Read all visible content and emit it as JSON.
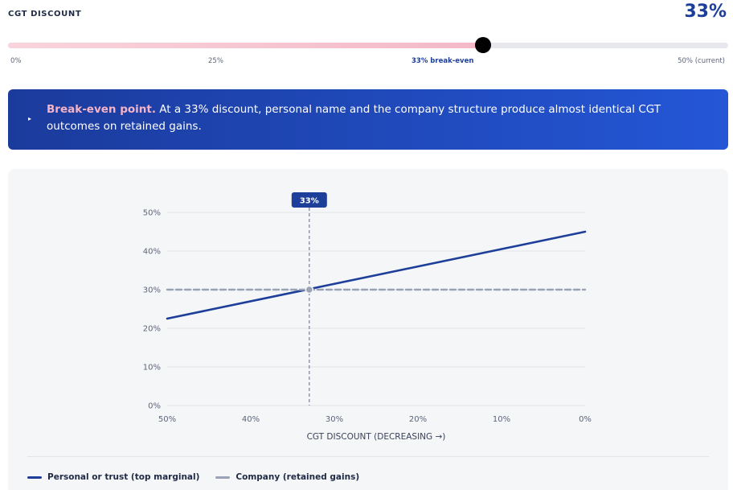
{
  "header": {
    "label": "CGT DISCOUNT",
    "value": "33%"
  },
  "slider": {
    "value_percent": 33,
    "min_percent": 0,
    "max_percent": 50,
    "ticks": {
      "t0": "0%",
      "t25": "25%",
      "t33": "33% break-even",
      "t50": "50% (current)"
    }
  },
  "banner": {
    "arrow": "▸",
    "strong": "Break-even point.",
    "text": " At a 33% discount, personal name and the company structure produce almost identical CGT outcomes on retained gains."
  },
  "chart_data": {
    "type": "line",
    "marker_label": "33%",
    "marker_x": 33,
    "xlabel": "CGT DISCOUNT (DECREASING →)",
    "xlim": [
      50,
      0
    ],
    "xticks": [
      50,
      40,
      30,
      20,
      10,
      0
    ],
    "xtick_labels": [
      "50%",
      "40%",
      "30%",
      "20%",
      "10%",
      "0%"
    ],
    "ylim": [
      0,
      50
    ],
    "yticks": [
      0,
      10,
      20,
      30,
      40,
      50
    ],
    "ytick_labels": [
      "0%",
      "10%",
      "20%",
      "30%",
      "40%",
      "50%"
    ],
    "grid": true,
    "legend_position": "bottom-left",
    "series": [
      {
        "name": "Personal or trust (top marginal)",
        "color": "#1d3f9a",
        "dashed": false,
        "x": [
          50,
          0
        ],
        "y": [
          22.5,
          45
        ]
      },
      {
        "name": "Company (retained gains)",
        "color": "#9aa3b5",
        "dashed": true,
        "x": [
          50,
          0
        ],
        "y": [
          30,
          30
        ]
      }
    ],
    "intersection": {
      "x": 33,
      "y": 30
    }
  },
  "colors": {
    "accent": "#1d3f9a",
    "banner_start": "#1b3b9c",
    "banner_end": "#2456d6",
    "slider_fill": "#f4b9c7",
    "highlight": "#f4b3c6"
  }
}
